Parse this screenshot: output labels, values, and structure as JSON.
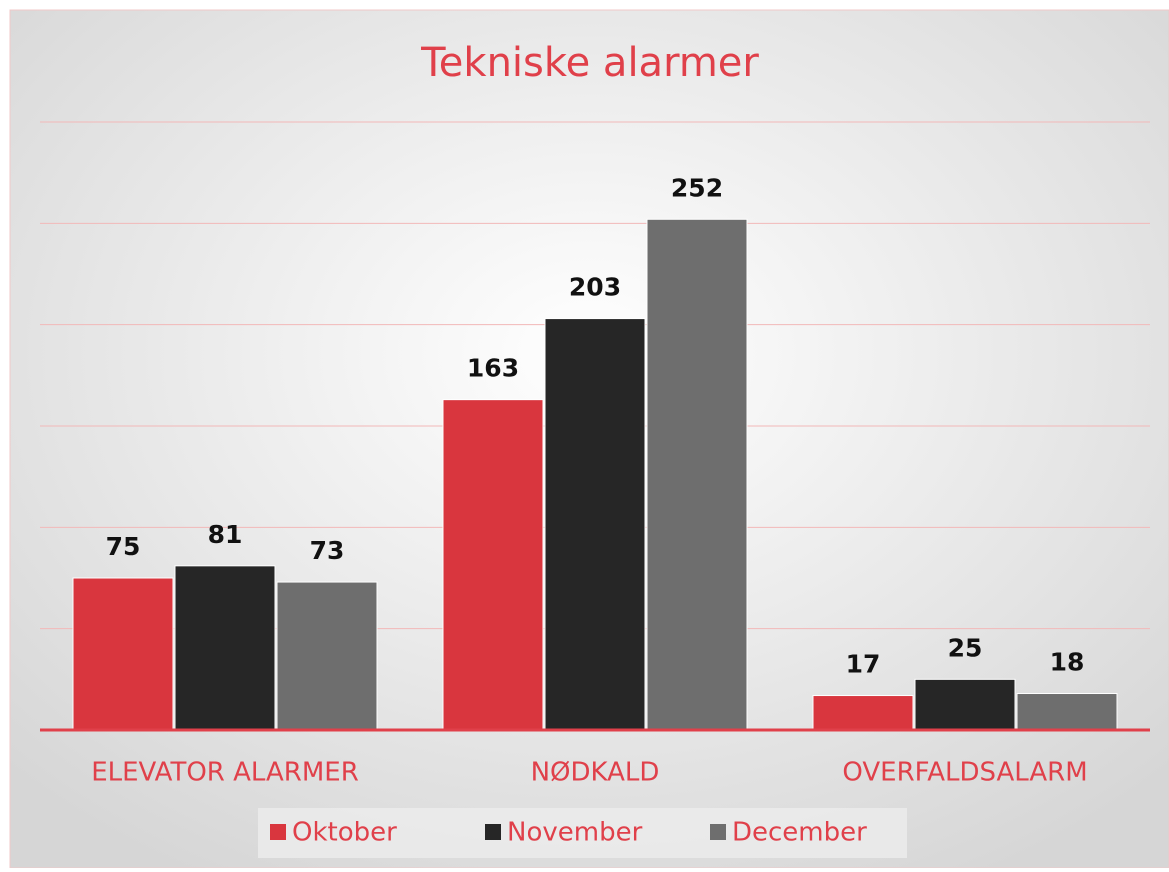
{
  "chart_data": {
    "type": "bar",
    "title": "Tekniske alarmer",
    "categories": [
      "ELEVATOR ALARMER",
      "NØDKALD",
      "OVERFALDSALARM"
    ],
    "series": [
      {
        "name": "Oktober",
        "color": "#d9363e",
        "values": [
          75,
          163,
          17
        ]
      },
      {
        "name": "November",
        "color": "#262626",
        "values": [
          81,
          203,
          25
        ]
      },
      {
        "name": "December",
        "color": "#6e6e6e",
        "values": [
          73,
          252,
          18
        ]
      }
    ],
    "ylim": [
      0,
      300
    ],
    "yticks": [
      0,
      50,
      100,
      150,
      200,
      250,
      300
    ],
    "grid": true,
    "legend": "bottom"
  }
}
